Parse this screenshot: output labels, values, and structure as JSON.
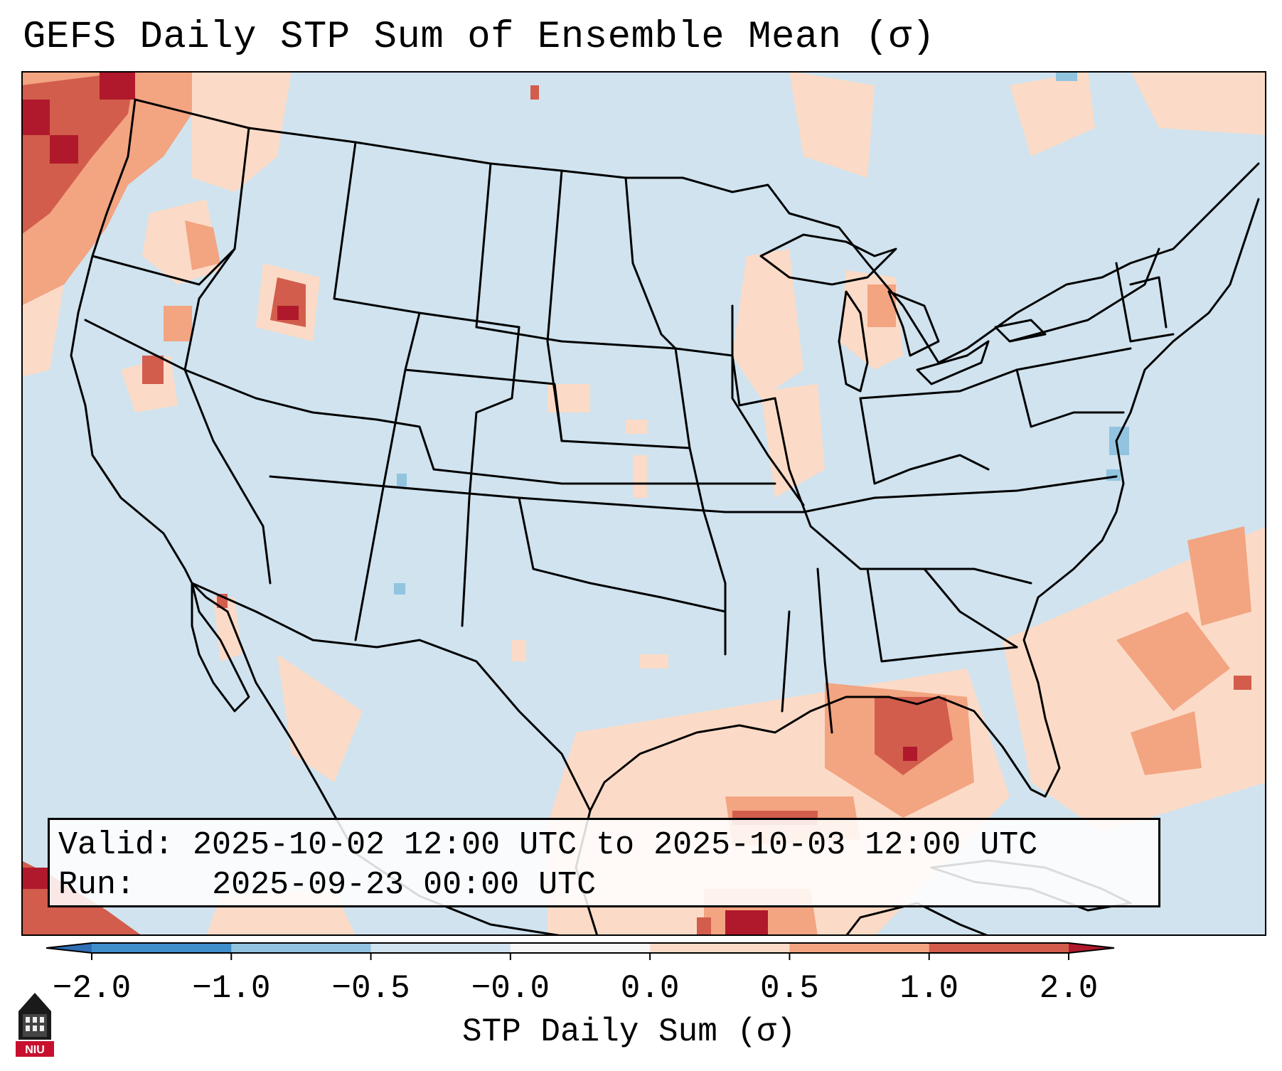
{
  "title": "GEFS Daily STP Sum of Ensemble Mean (σ)",
  "info": {
    "valid_label": "Valid:",
    "valid_value": "2025-10-02 12:00 UTC to 2025-10-03 12:00 UTC",
    "run_label": "Run:",
    "run_value": "2025-09-23 00:00 UTC"
  },
  "colorbar": {
    "label": "STP Daily Sum (σ)",
    "ticks": [
      "−2.0",
      "−1.0",
      "−0.5",
      "−0.0",
      "0.0",
      "0.5",
      "1.0",
      "2.0"
    ],
    "bins": [
      {
        "range": "< -2.0",
        "color": "#2f6fb5"
      },
      {
        "range": "-2.0 to -1.0",
        "color": "#3f8fcb"
      },
      {
        "range": "-1.0 to -0.5",
        "color": "#92c4df"
      },
      {
        "range": "-0.5 to -0.0",
        "color": "#d0e3ef"
      },
      {
        "range": "-0.0 to 0.0",
        "color": "#f7f7f7"
      },
      {
        "range": "0.0 to 0.5",
        "color": "#fbdbc7"
      },
      {
        "range": "0.5 to 1.0",
        "color": "#f3a481"
      },
      {
        "range": "1.0 to 2.0",
        "color": "#d25d4c"
      },
      {
        "range": "> 2.0",
        "color": "#b0192b"
      }
    ]
  },
  "map": {
    "background_color": "#d0e3ef",
    "boundaries": "US states, Canada, Mexico coastlines",
    "highlight_regions": [
      {
        "name": "Pacific Northwest",
        "sigma": 1.5
      },
      {
        "name": "Gulf of Mexico",
        "sigma": 1.2
      },
      {
        "name": "Western Atlantic",
        "sigma": 0.6
      },
      {
        "name": "Upper Midwest",
        "sigma": 0.4
      },
      {
        "name": "Mid-Atlantic coast",
        "sigma": -0.8
      }
    ]
  },
  "logo": {
    "text": "NIU"
  }
}
